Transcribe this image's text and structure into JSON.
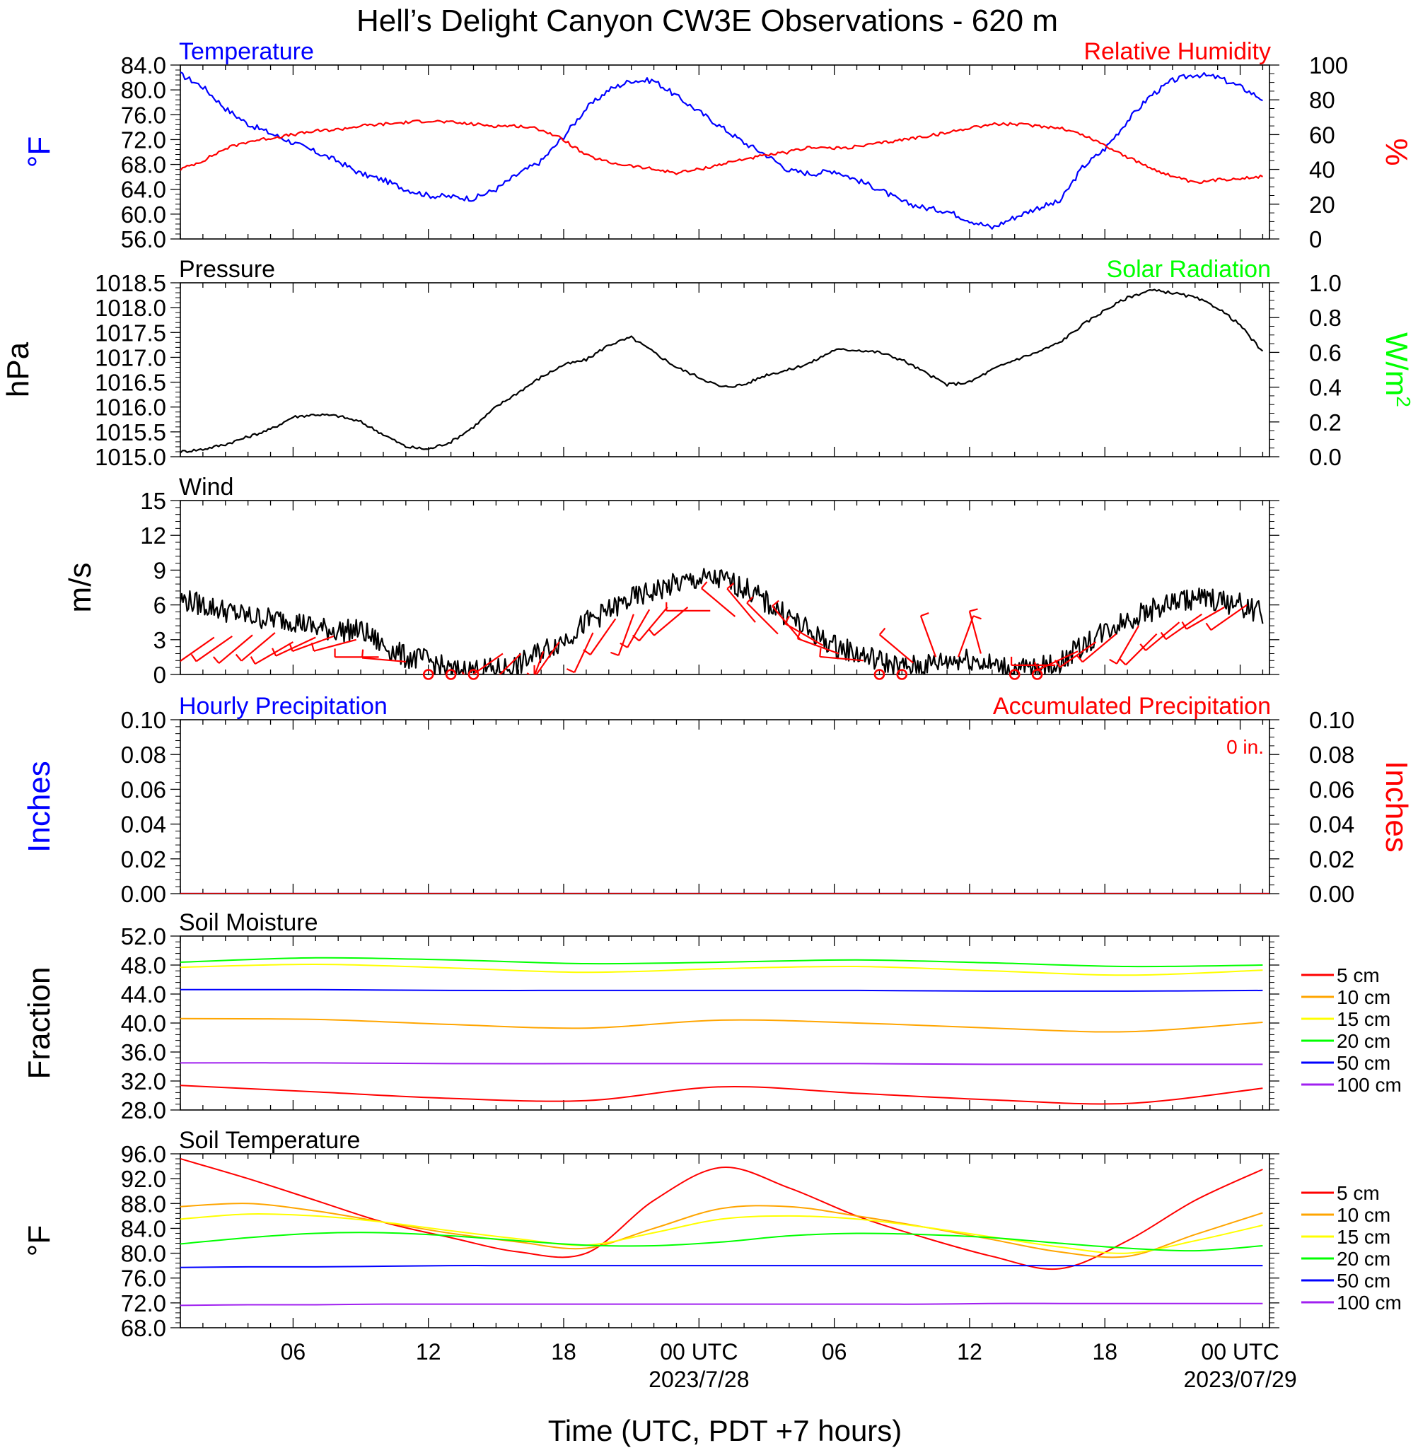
{
  "colors": {
    "blue": "#0000ff",
    "red": "#ff0000",
    "green": "#00ff00",
    "black": "#000000",
    "orange": "#ffa500",
    "yellow": "#ffff00",
    "purple": "#a020f0"
  },
  "title": "Hell’s Delight Canyon CW3E Observations - 620 m",
  "xaxis": {
    "range_hours": [
      0,
      48.3
    ],
    "ticks": [
      {
        "h": 5,
        "label": "06"
      },
      {
        "h": 11,
        "label": "12"
      },
      {
        "h": 17,
        "label": "18"
      },
      {
        "h": 23,
        "label": "00 UTC"
      },
      {
        "h": 29,
        "label": "06"
      },
      {
        "h": 35,
        "label": "12"
      },
      {
        "h": 41,
        "label": "18"
      },
      {
        "h": 47,
        "label": "00 UTC"
      }
    ],
    "dates": [
      {
        "h": 23,
        "label": "2023/7/28"
      },
      {
        "h": 47,
        "label": "2023/07/29"
      }
    ],
    "label": "Time (UTC, PDT +7 hours)"
  },
  "chart_data": [
    {
      "type": "line",
      "left_title": "Temperature",
      "right_title": "Relative Humidity",
      "ylabel_left": "°F",
      "ylabel_right": "%",
      "ylim_left": [
        56,
        84
      ],
      "ylim_right": [
        0,
        100
      ],
      "yticks_left": [
        "84.0",
        "80.0",
        "76.0",
        "72.0",
        "68.0",
        "64.0",
        "60.0",
        "56.0"
      ],
      "yticks_right": [
        "100",
        "80",
        "60",
        "40",
        "20",
        "0"
      ],
      "x": [
        0,
        1,
        2,
        3,
        4,
        5,
        6,
        7,
        8,
        9,
        10,
        11,
        12,
        13,
        14,
        15,
        16,
        17,
        18,
        19,
        20,
        21,
        22,
        23,
        24,
        25,
        26,
        27,
        28,
        29,
        30,
        31,
        32,
        33,
        34,
        35,
        36,
        37,
        38,
        39,
        40,
        41,
        42,
        43,
        44,
        45,
        46,
        47,
        48
      ],
      "series": [
        {
          "axis": "left",
          "color": "blue",
          "values": [
            82.5,
            80.5,
            77,
            74.5,
            73,
            71.5,
            70,
            68.5,
            66.5,
            65.5,
            64,
            63,
            62.8,
            62.5,
            64,
            66.5,
            68.5,
            72.5,
            77,
            80,
            81.5,
            81.5,
            79,
            76.5,
            74,
            71.5,
            69.5,
            67,
            66.5,
            67,
            65.5,
            64,
            62,
            61,
            60.5,
            59,
            57.8,
            59.5,
            61,
            62,
            67.5,
            70.5,
            75,
            79,
            81.5,
            82.5,
            82,
            80.5,
            78.5
          ]
        },
        {
          "axis": "right",
          "color": "red",
          "values": [
            40,
            45,
            52,
            56,
            58,
            60,
            62,
            63,
            65,
            66,
            67,
            68,
            67,
            66,
            65,
            65,
            63,
            57,
            48,
            44,
            42,
            40,
            38,
            40,
            43,
            46,
            48,
            50,
            53,
            52,
            53,
            55,
            57,
            59,
            61,
            64,
            66,
            66,
            65,
            64,
            60,
            54,
            47,
            41,
            36,
            32,
            34,
            35,
            36
          ]
        }
      ]
    },
    {
      "type": "line",
      "left_title": "Pressure",
      "right_title": "Solar Radiation",
      "ylabel_left": "hPa",
      "ylabel_right": "W/m",
      "ylabel_right_sup": "2",
      "ylim_left": [
        1015,
        1018.5
      ],
      "ylim_right": [
        0,
        1
      ],
      "yticks_left": [
        "1018.5",
        "1018.0",
        "1017.5",
        "1017.0",
        "1016.5",
        "1016.0",
        "1015.5",
        "1015.0"
      ],
      "yticks_right": [
        "1.0",
        "0.8",
        "0.6",
        "0.4",
        "0.2",
        "0.0"
      ],
      "x": [
        0,
        1,
        2,
        3,
        4,
        5,
        6,
        7,
        8,
        9,
        10,
        11,
        12,
        13,
        14,
        15,
        16,
        17,
        18,
        19,
        20,
        21,
        22,
        23,
        24,
        25,
        26,
        27,
        28,
        29,
        30,
        31,
        32,
        33,
        34,
        35,
        36,
        37,
        38,
        39,
        40,
        41,
        42,
        43,
        44,
        45,
        46,
        47,
        48
      ],
      "series": [
        {
          "axis": "left",
          "color": "black",
          "values": [
            1015.1,
            1015.15,
            1015.25,
            1015.4,
            1015.55,
            1015.8,
            1015.85,
            1015.82,
            1015.7,
            1015.45,
            1015.2,
            1015.15,
            1015.3,
            1015.6,
            1016.0,
            1016.3,
            1016.6,
            1016.85,
            1016.95,
            1017.25,
            1017.4,
            1017.1,
            1016.8,
            1016.6,
            1016.4,
            1016.45,
            1016.65,
            1016.75,
            1016.9,
            1017.15,
            1017.15,
            1017.1,
            1016.95,
            1016.7,
            1016.45,
            1016.5,
            1016.75,
            1016.95,
            1017.1,
            1017.3,
            1017.65,
            1017.95,
            1018.2,
            1018.35,
            1018.3,
            1018.2,
            1018.0,
            1017.65,
            1017.1
          ]
        }
      ]
    },
    {
      "type": "line",
      "left_title": "Wind",
      "ylabel_left": "m/s",
      "ylim_left": [
        0,
        15
      ],
      "yticks_left": [
        "15",
        "12",
        "9",
        "6",
        "3",
        "0"
      ],
      "x": [
        0,
        1,
        2,
        3,
        4,
        5,
        6,
        7,
        8,
        9,
        10,
        11,
        12,
        13,
        14,
        15,
        16,
        17,
        18,
        19,
        20,
        21,
        22,
        23,
        24,
        25,
        26,
        27,
        28,
        29,
        30,
        31,
        32,
        33,
        34,
        35,
        36,
        37,
        38,
        39,
        40,
        41,
        42,
        43,
        44,
        45,
        46,
        47,
        48
      ],
      "series": [
        {
          "axis": "left",
          "color": "black",
          "values": [
            6.5,
            6,
            5.5,
            5,
            4.8,
            4.7,
            4,
            3.8,
            3.8,
            2.5,
            1.5,
            1.2,
            0.3,
            0.4,
            0.4,
            0.8,
            2.0,
            3.0,
            4.5,
            5.5,
            6.5,
            7.2,
            7.8,
            8.2,
            8.2,
            7.5,
            6.2,
            5.0,
            3.5,
            2.5,
            1.8,
            1.2,
            0.6,
            0.8,
            1.2,
            1.4,
            0.8,
            0.4,
            0.5,
            1.0,
            2.5,
            3.8,
            4.8,
            5.5,
            6.2,
            6.6,
            6.4,
            6.0,
            5.3
          ]
        }
      ],
      "calm_circles_h": [
        11,
        12,
        13,
        31,
        32,
        37,
        38
      ],
      "barbs": [
        {
          "h": 1.5,
          "s": 3.2,
          "a": 235
        },
        {
          "h": 2.3,
          "s": 3.3,
          "a": 235
        },
        {
          "h": 3.2,
          "s": 3.4,
          "a": 230
        },
        {
          "h": 4.2,
          "s": 3.6,
          "a": 230
        },
        {
          "h": 5.0,
          "s": 2.8,
          "a": 240
        },
        {
          "h": 6.0,
          "s": 3.2,
          "a": 245
        },
        {
          "h": 6.8,
          "s": 3.3,
          "a": 250
        },
        {
          "h": 7.8,
          "s": 3.0,
          "a": 255
        },
        {
          "h": 8.8,
          "s": 1.5,
          "a": 270
        },
        {
          "h": 10.0,
          "s": 1.1,
          "a": 275
        },
        {
          "h": 14.3,
          "s": 1.8,
          "a": 235
        },
        {
          "h": 15.1,
          "s": 1.8,
          "a": 225
        },
        {
          "h": 15.7,
          "s": 0.8,
          "a": 180
        },
        {
          "h": 16.1,
          "s": 2.0,
          "a": 200
        },
        {
          "h": 16.8,
          "s": 2.8,
          "a": 215
        },
        {
          "h": 18.3,
          "s": 3.6,
          "a": 205
        },
        {
          "h": 19.3,
          "s": 4.8,
          "a": 215
        },
        {
          "h": 20.1,
          "s": 5.2,
          "a": 200
        },
        {
          "h": 20.8,
          "s": 5.6,
          "a": 210
        },
        {
          "h": 21.6,
          "s": 5.8,
          "a": 220
        },
        {
          "h": 22.5,
          "s": 5.8,
          "a": 230
        },
        {
          "h": 23.5,
          "s": 5.5,
          "a": 270
        },
        {
          "h": 24.6,
          "s": 5.0,
          "a": 310
        },
        {
          "h": 25.5,
          "s": 4.5,
          "a": 320
        },
        {
          "h": 26.5,
          "s": 3.5,
          "a": 315
        },
        {
          "h": 27.5,
          "s": 3.0,
          "a": 320
        },
        {
          "h": 28.5,
          "s": 2.5,
          "a": 300
        },
        {
          "h": 29.2,
          "s": 1.8,
          "a": 290
        },
        {
          "h": 30.3,
          "s": 1.2,
          "a": 275
        },
        {
          "h": 32.5,
          "s": 1.0,
          "a": 310
        },
        {
          "h": 33.5,
          "s": 1.5,
          "a": 340
        },
        {
          "h": 34.5,
          "s": 1.5,
          "a": 20
        },
        {
          "h": 35.5,
          "s": 1.8,
          "a": 345
        },
        {
          "h": 38.8,
          "s": 0.8,
          "a": 270
        },
        {
          "h": 39.8,
          "s": 2.0,
          "a": 245
        },
        {
          "h": 40.6,
          "s": 2.8,
          "a": 235
        },
        {
          "h": 41.5,
          "s": 3.5,
          "a": 230
        },
        {
          "h": 42.5,
          "s": 4.2,
          "a": 210
        },
        {
          "h": 43.3,
          "s": 3.5,
          "a": 225
        },
        {
          "h": 44.3,
          "s": 4.5,
          "a": 230
        },
        {
          "h": 45.3,
          "s": 5.2,
          "a": 235
        },
        {
          "h": 46.3,
          "s": 5.8,
          "a": 240
        },
        {
          "h": 47.3,
          "s": 6.0,
          "a": 235
        }
      ]
    },
    {
      "type": "line",
      "left_title": "Hourly Precipitation",
      "right_title": "Accumulated Precipitation",
      "annotation": "0 in.",
      "ylabel_left": "Inches",
      "ylabel_right": "Inches",
      "ylim_left": [
        0,
        0.1
      ],
      "ylim_right": [
        0,
        0.1
      ],
      "yticks_left": [
        "0.10",
        "0.08",
        "0.06",
        "0.04",
        "0.02",
        "0.00"
      ],
      "yticks_right": [
        "0.10",
        "0.08",
        "0.06",
        "0.04",
        "0.02",
        "0.00"
      ],
      "x": [
        0,
        48.3
      ],
      "series": [
        {
          "axis": "left",
          "color": "blue",
          "values": [
            0,
            0
          ]
        },
        {
          "axis": "right",
          "color": "red",
          "values": [
            0,
            0
          ]
        }
      ]
    },
    {
      "type": "line",
      "left_title": "Soil Moisture",
      "ylabel_left": "Fraction",
      "ylim_left": [
        28,
        52
      ],
      "yticks_left": [
        "52.0",
        "48.0",
        "44.0",
        "40.0",
        "36.0",
        "32.0",
        "28.0"
      ],
      "x": [
        0,
        6,
        12,
        18,
        24,
        30,
        36,
        42,
        48
      ],
      "legend": [
        "5 cm",
        "10 cm",
        "15 cm",
        "20 cm",
        "50 cm",
        "100 cm"
      ],
      "series": [
        {
          "name": "5 cm",
          "color": "red",
          "values": [
            31.4,
            30.5,
            29.6,
            29.3,
            31.2,
            30.3,
            29.4,
            28.9,
            31.0
          ]
        },
        {
          "name": "10 cm",
          "color": "orange",
          "values": [
            40.6,
            40.5,
            39.8,
            39.3,
            40.4,
            40.0,
            39.3,
            38.8,
            40.1
          ]
        },
        {
          "name": "15 cm",
          "color": "yellow",
          "values": [
            47.7,
            48.1,
            47.6,
            47.0,
            47.5,
            47.8,
            47.2,
            46.6,
            47.3
          ]
        },
        {
          "name": "20 cm",
          "color": "green",
          "values": [
            48.4,
            49.0,
            48.7,
            48.2,
            48.4,
            48.7,
            48.3,
            47.8,
            48.0
          ]
        },
        {
          "name": "50 cm",
          "color": "blue",
          "values": [
            44.6,
            44.6,
            44.5,
            44.5,
            44.5,
            44.5,
            44.4,
            44.4,
            44.5
          ]
        },
        {
          "name": "100 cm",
          "color": "purple",
          "values": [
            34.5,
            34.5,
            34.4,
            34.4,
            34.4,
            34.4,
            34.3,
            34.3,
            34.3
          ]
        }
      ]
    },
    {
      "type": "line",
      "left_title": "Soil Temperature",
      "ylabel_left": "°F",
      "ylim_left": [
        68,
        96
      ],
      "yticks_left": [
        "96.0",
        "92.0",
        "88.0",
        "84.0",
        "80.0",
        "76.0",
        "72.0",
        "68.0"
      ],
      "x": [
        0,
        3,
        6,
        9,
        12,
        15,
        18,
        21,
        24,
        27,
        30,
        33,
        36,
        39,
        42,
        45,
        48
      ],
      "legend": [
        "5 cm",
        "10 cm",
        "15 cm",
        "20 cm",
        "50 cm",
        "100 cm"
      ],
      "series": [
        {
          "name": "5 cm",
          "color": "red",
          "values": [
            95.2,
            92.0,
            88.5,
            85.0,
            82.5,
            80.2,
            80.0,
            88.5,
            93.8,
            90.5,
            86.0,
            82.5,
            79.5,
            77.5,
            82.0,
            88.5,
            93.5
          ]
        },
        {
          "name": "10 cm",
          "color": "orange",
          "values": [
            87.5,
            88.0,
            86.8,
            85.0,
            83.2,
            81.8,
            80.8,
            84.0,
            87.2,
            87.5,
            86.0,
            84.2,
            82.2,
            80.2,
            79.5,
            83.0,
            86.5
          ]
        },
        {
          "name": "15 cm",
          "color": "yellow",
          "values": [
            85.5,
            86.3,
            86.0,
            85.0,
            83.6,
            82.3,
            81.3,
            83.3,
            85.5,
            86.0,
            85.5,
            84.2,
            82.6,
            81.0,
            80.0,
            82.0,
            84.5
          ]
        },
        {
          "name": "20 cm",
          "color": "green",
          "values": [
            81.5,
            82.5,
            83.2,
            83.3,
            82.8,
            82.0,
            81.3,
            81.2,
            81.8,
            82.8,
            83.2,
            83.0,
            82.5,
            81.6,
            80.8,
            80.4,
            81.2
          ]
        },
        {
          "name": "50 cm",
          "color": "blue",
          "values": [
            77.7,
            77.8,
            77.8,
            77.9,
            78.0,
            78.0,
            78.0,
            78.0,
            78.0,
            78.0,
            78.0,
            78.0,
            78.0,
            78.0,
            78.0,
            78.0,
            78.0
          ]
        },
        {
          "name": "100 cm",
          "color": "purple",
          "values": [
            71.6,
            71.7,
            71.7,
            71.8,
            71.8,
            71.8,
            71.8,
            71.8,
            71.8,
            71.8,
            71.8,
            71.8,
            71.9,
            71.9,
            71.9,
            71.9,
            71.9
          ]
        }
      ]
    }
  ]
}
